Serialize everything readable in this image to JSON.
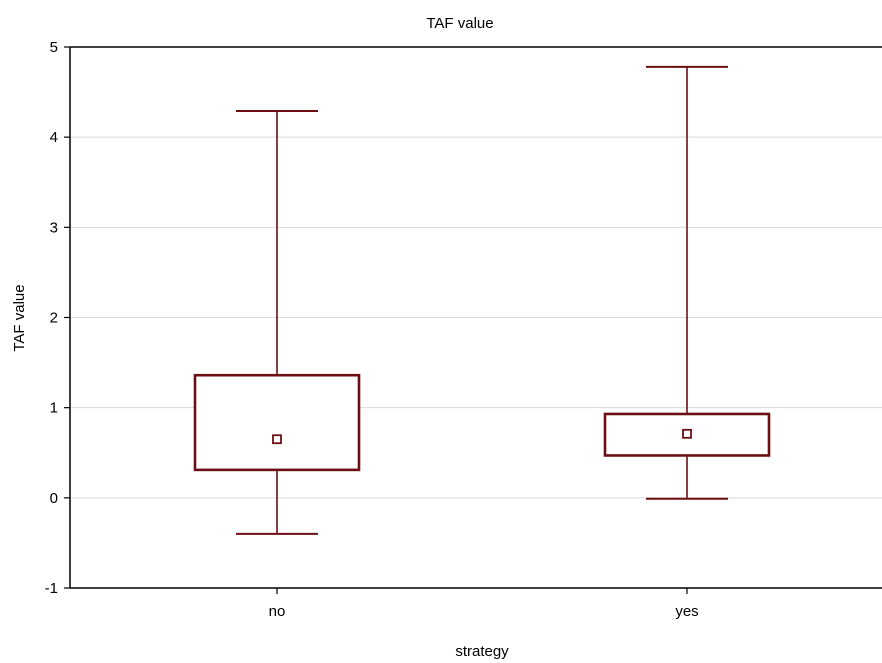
{
  "chart_data": {
    "type": "boxplot",
    "title": "TAF value",
    "xlabel": "strategy",
    "ylabel": "TAF value",
    "ylim": [
      -1,
      5
    ],
    "yticks": [
      -1,
      0,
      1,
      2,
      3,
      4,
      5
    ],
    "ytick_labels": [
      "-1",
      "0",
      "1",
      "2",
      "3",
      "4",
      "5"
    ],
    "categories": [
      "no",
      "yes"
    ],
    "boxes": [
      {
        "category": "no",
        "whisker_low": -0.4,
        "box_low": 0.31,
        "center": 0.65,
        "box_high": 1.36,
        "whisker_high": 4.29
      },
      {
        "category": "yes",
        "whisker_low": -0.01,
        "box_low": 0.47,
        "center": 0.71,
        "box_high": 0.93,
        "whisker_high": 4.78
      }
    ],
    "grid": true,
    "colors": {
      "box": "#6b0f14",
      "grid": "#d9d9d9",
      "axis": "#000000"
    }
  }
}
